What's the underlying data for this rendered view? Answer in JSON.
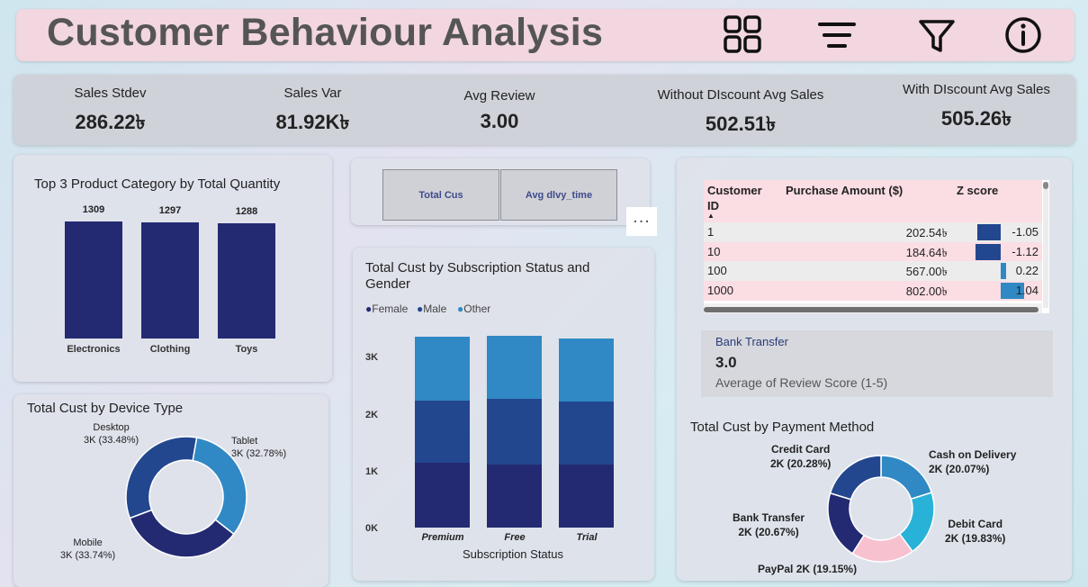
{
  "header": {
    "title": "Customer Behaviour Analysis",
    "icons": [
      "grid-icon",
      "lines-icon",
      "filter-icon",
      "info-icon"
    ]
  },
  "kpis": [
    {
      "label": "Sales Stdev",
      "value": "286.22৳"
    },
    {
      "label": "Sales Var",
      "value": "81.92K৳"
    },
    {
      "label": "Avg Review",
      "value": "3.00"
    },
    {
      "label": "Without DIscount Avg Sales",
      "value": "502.51৳"
    },
    {
      "label": "With DIscount Avg Sales",
      "value": "505.26৳"
    }
  ],
  "product_panel": {
    "title": "Top 3 Product Category by Total Quantity"
  },
  "device_panel": {
    "title": "Total Cust by Device Type",
    "labels": {
      "desktop_name": "Desktop",
      "desktop_value": "3K (33.48%)",
      "tablet_name": "Tablet",
      "tablet_value": "3K (32.78%)",
      "mobile_name": "Mobile",
      "mobile_value": "3K (33.74%)"
    }
  },
  "buttons": {
    "total_cus": "Total Cus",
    "avg_dlvy": "Avg dlvy_time",
    "more": "..."
  },
  "subscription_panel": {
    "title_line1": "Total Cust by Subscription Status and",
    "title_line2": "Gender",
    "legend": [
      "Female",
      "Male",
      "Other"
    ],
    "yticks": [
      "3K",
      "2K",
      "1K",
      "0K"
    ],
    "xlabel": "Subscription Status"
  },
  "table": {
    "headers": {
      "id": "Customer",
      "id2": "ID",
      "amount": "Purchase Amount ($)",
      "z": "Z score"
    },
    "rows": [
      {
        "id": "1",
        "amount": "202.54৳",
        "z": "-1.05",
        "zv": -1.05
      },
      {
        "id": "10",
        "amount": "184.64৳",
        "z": "-1.12",
        "zv": -1.12
      },
      {
        "id": "100",
        "amount": "567.00৳",
        "z": "0.22",
        "zv": 0.22
      },
      {
        "id": "1000",
        "amount": "802.00৳",
        "z": "1.04",
        "zv": 1.04
      }
    ]
  },
  "review_card": {
    "filter": "Bank Transfer",
    "value": "3.0",
    "label": "Average of Review Score (1-5)"
  },
  "payment_panel": {
    "title": "Total Cust by Payment Method",
    "labels": {
      "credit_name": "Credit Card",
      "credit_value": "2K (20.28%)",
      "cash_name": "Cash on Delivery",
      "cash_value": "2K (20.07%)",
      "bank_name": "Bank Transfer",
      "bank_value": "2K (20.67%)",
      "debit_name": "Debit Card",
      "debit_value": "2K (19.83%)",
      "paypal": "PayPal 2K (19.15%)"
    }
  },
  "colors": {
    "navy": "#232a72",
    "mid_blue": "#23478f",
    "light_blue": "#3089c4",
    "sky": "#29b2d8",
    "pink": "#f7c1d0",
    "header_bg": "#f2d6e0"
  },
  "chart_data": [
    {
      "type": "bar",
      "title": "Top 3 Product Category by Total Quantity",
      "categories": [
        "Electronics",
        "Clothing",
        "Toys"
      ],
      "values": [
        1309,
        1297,
        1288
      ],
      "ylim": [
        0,
        1309
      ]
    },
    {
      "type": "pie",
      "title": "Total Cust by Device Type",
      "categories": [
        "Tablet",
        "Mobile",
        "Desktop"
      ],
      "values": [
        32.78,
        33.74,
        33.48
      ],
      "colors": [
        "#3089c4",
        "#232a72",
        "#23478f"
      ]
    },
    {
      "type": "bar",
      "title": "Total Cust by Subscription Status and Gender",
      "categories": [
        "Premium",
        "Free",
        "Trial"
      ],
      "series": [
        {
          "name": "Female",
          "values": [
            1130,
            1110,
            1110
          ]
        },
        {
          "name": "Male",
          "values": [
            1090,
            1140,
            1100
          ]
        },
        {
          "name": "Other",
          "values": [
            1130,
            1110,
            1110
          ]
        }
      ],
      "ylim": [
        0,
        3500
      ],
      "xlabel": "Subscription Status"
    },
    {
      "type": "pie",
      "title": "Total Cust by Payment Method",
      "categories": [
        "Cash on Delivery",
        "Debit Card",
        "PayPal",
        "Bank Transfer",
        "Credit Card"
      ],
      "values": [
        20.07,
        19.83,
        19.15,
        20.67,
        20.28
      ],
      "colors": [
        "#3089c4",
        "#29b2d8",
        "#f7c1d0",
        "#232a72",
        "#23478f"
      ]
    }
  ]
}
